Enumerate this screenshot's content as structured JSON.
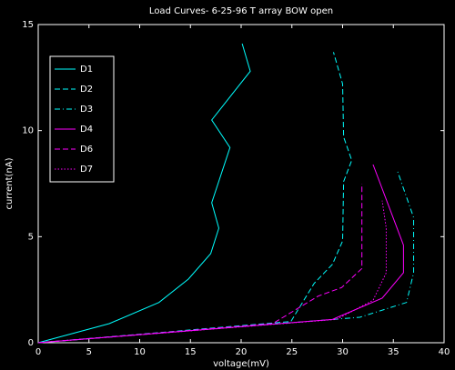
{
  "chart_data": {
    "type": "line",
    "title": "Load Curves- 6-25-96 T array BOW open",
    "x_label": "voltage(mV)",
    "y_label": "current(nA)",
    "xlim": [
      0,
      40
    ],
    "xticks": [
      0,
      5,
      10,
      15,
      20,
      25,
      30,
      35,
      40
    ],
    "ylim": [
      0,
      15
    ],
    "yticks": [
      0,
      5,
      10,
      15
    ],
    "legend": "upper left",
    "background": "#000000",
    "foreground": "#ffffff",
    "series": [
      {
        "name": "D1",
        "color": "#00ffff",
        "line_style": "solid",
        "x": [
          0,
          7,
          11.9,
          14.8,
          17.0,
          17.8,
          17.1,
          18.9,
          17.1,
          20.9,
          20.1
        ],
        "values": [
          0,
          0.9,
          1.9,
          3.0,
          4.2,
          5.4,
          6.6,
          9.2,
          10.5,
          12.8,
          14.1
        ]
      },
      {
        "name": "D2",
        "color": "#00ffff",
        "line_style": "dashed",
        "x": [
          0,
          24.9,
          27.2,
          29.0,
          30.0,
          30.1,
          30.9,
          30.1,
          30.0,
          29.1
        ],
        "values": [
          0,
          1.0,
          2.8,
          3.7,
          4.8,
          7.6,
          8.6,
          9.7,
          12.2,
          13.7
        ]
      },
      {
        "name": "D3",
        "color": "#00ffff",
        "line_style": "dashdot",
        "x": [
          0,
          31.7,
          36.3,
          37.0,
          37.0,
          35.4
        ],
        "values": [
          0,
          1.2,
          1.9,
          3.3,
          5.9,
          8.1
        ]
      },
      {
        "name": "D4",
        "color": "#ff00ff",
        "line_style": "solid",
        "x": [
          0,
          29.0,
          33.9,
          36.0,
          36.0,
          33.0
        ],
        "values": [
          0,
          1.1,
          2.1,
          3.3,
          4.6,
          8.4
        ]
      },
      {
        "name": "D6",
        "color": "#ff00ff",
        "line_style": "dashed",
        "x": [
          0,
          23.1,
          27.6,
          29.9,
          31.9,
          31.9
        ],
        "values": [
          0,
          0.9,
          2.2,
          2.6,
          3.5,
          7.5
        ]
      },
      {
        "name": "D7",
        "color": "#ff00ff",
        "line_style": "dotted",
        "x": [
          0,
          29.4,
          33.0,
          34.3,
          34.3,
          33.9
        ],
        "values": [
          0,
          1.1,
          2.0,
          3.3,
          5.4,
          6.7
        ]
      }
    ]
  }
}
